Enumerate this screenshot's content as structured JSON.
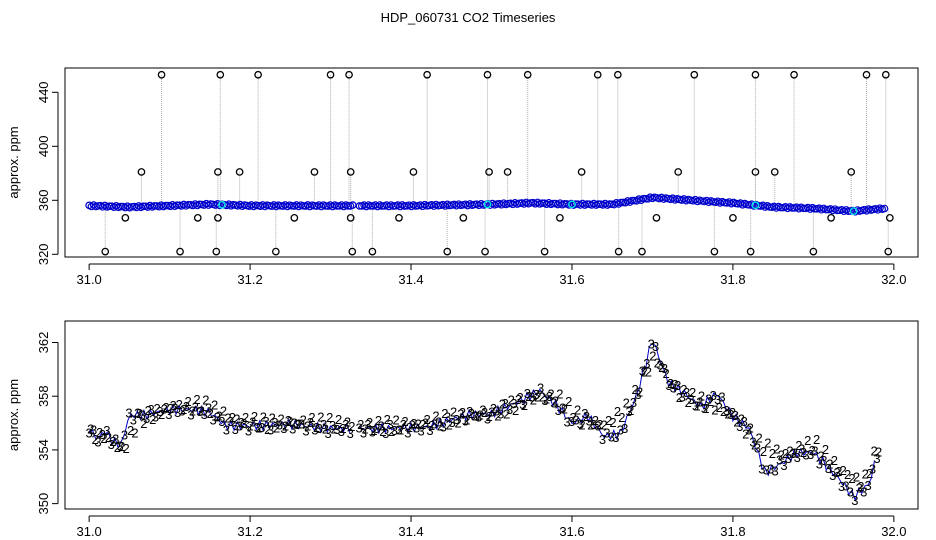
{
  "page_title": "HDP_060731  CO2 Timeseries",
  "colors": {
    "raw_points": "#000000",
    "raw_lines": "#b0b0b0",
    "series_2": "#00b000",
    "series_3": "#0000cc",
    "cyan": "#00e5e5",
    "axis": "#000000"
  },
  "chart_data": [
    {
      "type": "scatter",
      "title": "",
      "xlabel": "",
      "ylabel": "approx. ppm",
      "xlim": [
        30.97,
        32.03
      ],
      "ylim": [
        318,
        458
      ],
      "xticks": [
        31.0,
        31.2,
        31.4,
        31.6,
        31.8,
        32.0
      ],
      "xtick_labels": [
        "31.0",
        "31.2",
        "31.4",
        "31.6",
        "31.8",
        "32.0"
      ],
      "yticks": [
        320,
        360,
        400,
        440
      ],
      "ytick_labels": [
        "320",
        "360",
        "400",
        "440"
      ],
      "baseline": {
        "x": [
          31.0,
          31.05,
          31.1,
          31.15,
          31.2,
          31.3,
          31.4,
          31.5,
          31.55,
          31.6,
          31.65,
          31.67,
          31.7,
          31.75,
          31.8,
          31.85,
          31.9,
          31.95,
          31.99
        ],
        "y": [
          356,
          355,
          356,
          357,
          356,
          356,
          356,
          357,
          358,
          357,
          357,
          359,
          362,
          360,
          358,
          355,
          354,
          352,
          354
        ]
      },
      "spikes_high": [
        31.09,
        31.163,
        31.21,
        31.3,
        31.323,
        31.42,
        31.495,
        31.545,
        31.632,
        31.657,
        31.752,
        31.828,
        31.876,
        31.966,
        31.99
      ],
      "spikes_mid": [
        31.065,
        31.16,
        31.187,
        31.28,
        31.325,
        31.403,
        31.497,
        31.52,
        31.612,
        31.732,
        31.828,
        31.852,
        31.947
      ],
      "spikes_low": [
        31.02,
        31.113,
        31.158,
        31.232,
        31.327,
        31.352,
        31.445,
        31.492,
        31.566,
        31.658,
        31.687,
        31.777,
        31.822,
        31.9,
        31.993
      ],
      "extra_points": [
        {
          "x": 31.045,
          "y": 347
        },
        {
          "x": 31.135,
          "y": 347
        },
        {
          "x": 31.16,
          "y": 347
        },
        {
          "x": 31.255,
          "y": 347
        },
        {
          "x": 31.325,
          "y": 347
        },
        {
          "x": 31.385,
          "y": 347
        },
        {
          "x": 31.465,
          "y": 347
        },
        {
          "x": 31.585,
          "y": 347
        },
        {
          "x": 31.705,
          "y": 347
        },
        {
          "x": 31.8,
          "y": 347
        },
        {
          "x": 31.922,
          "y": 347
        },
        {
          "x": 31.995,
          "y": 347
        }
      ]
    },
    {
      "type": "scatter",
      "title": "",
      "xlabel": "",
      "ylabel": "approx. ppm",
      "xlim": [
        30.97,
        32.03
      ],
      "ylim": [
        349.6,
        363.6
      ],
      "xticks": [
        31.0,
        31.2,
        31.4,
        31.6,
        31.8,
        32.0
      ],
      "xtick_labels": [
        "31.0",
        "31.2",
        "31.4",
        "31.6",
        "31.8",
        "32.0"
      ],
      "yticks": [
        350,
        354,
        358,
        362
      ],
      "ytick_labels": [
        "350",
        "354",
        "358",
        "362"
      ],
      "series": [
        {
          "marker": "3",
          "x": [
            31.0,
            31.01,
            31.02,
            31.03,
            31.04,
            31.05,
            31.07,
            31.1,
            31.13,
            31.15,
            31.17,
            31.2,
            31.25,
            31.3,
            31.33,
            31.37,
            31.42,
            31.47,
            31.5,
            31.53,
            31.56,
            31.58,
            31.6,
            31.62,
            31.64,
            31.66,
            31.68,
            31.7,
            31.72,
            31.74,
            31.76,
            31.78,
            31.8,
            31.82,
            31.84,
            31.86,
            31.88,
            31.9,
            31.93,
            31.95,
            31.97,
            31.98
          ],
          "y": [
            355.6,
            354.8,
            355.4,
            354.6,
            354.4,
            356.6,
            356.6,
            357.0,
            357.0,
            356.8,
            355.8,
            355.8,
            355.9,
            355.6,
            355.6,
            355.6,
            355.7,
            356.6,
            356.7,
            357.5,
            358.4,
            357.4,
            356.0,
            356.5,
            355.0,
            355.2,
            358.0,
            362.2,
            359.0,
            358.2,
            357.2,
            358.2,
            356.5,
            355.6,
            352.3,
            353.0,
            353.8,
            353.8,
            352.0,
            350.5,
            351.5,
            354.0
          ]
        },
        {
          "marker": "2",
          "x": [
            31.0,
            31.02,
            31.04,
            31.06,
            31.1,
            31.14,
            31.18,
            31.22,
            31.28,
            31.34,
            31.4,
            31.45,
            31.5,
            31.55,
            31.58,
            31.61,
            31.64,
            31.67,
            31.7,
            31.73,
            31.76,
            31.8,
            31.83,
            31.86,
            31.9,
            31.93,
            31.96,
            31.98
          ],
          "y": [
            355.2,
            355.0,
            354.0,
            356.3,
            357.2,
            357.4,
            356.3,
            356.0,
            356.1,
            355.8,
            355.9,
            356.4,
            356.8,
            357.9,
            358.0,
            356.3,
            355.9,
            357.3,
            361.0,
            358.3,
            357.6,
            356.6,
            354.5,
            353.7,
            354.5,
            352.6,
            351.5,
            354.5
          ]
        }
      ]
    }
  ]
}
